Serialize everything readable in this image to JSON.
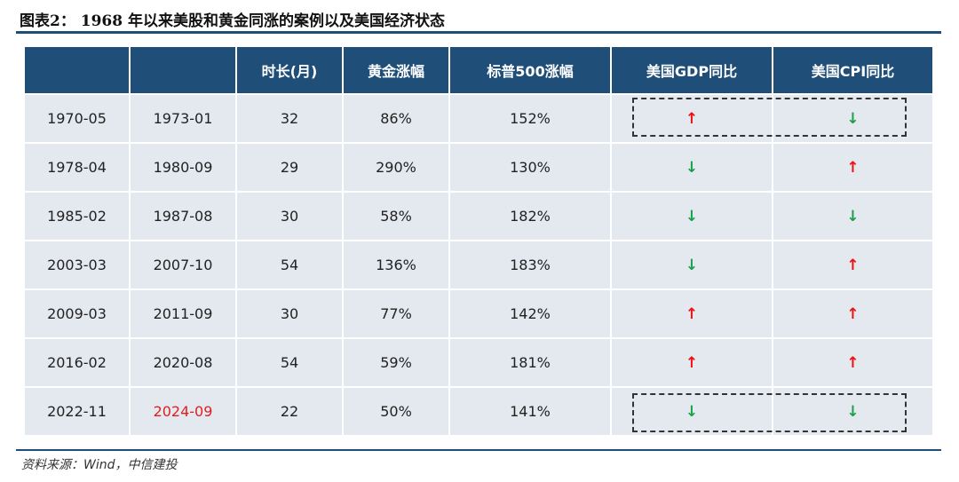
{
  "title": "图表2：  1968 年以来美股和黄金同涨的案例以及美国经济状态",
  "table": {
    "headers": [
      "",
      "",
      "时长(月)",
      "黄金涨幅",
      "标普500涨幅",
      "美国GDP同比",
      "美国CPI同比"
    ],
    "rows": [
      {
        "start": "1970-05",
        "end": "1973-01",
        "months": "32",
        "gold": "86%",
        "sp500": "152%",
        "gdp": "up",
        "cpi": "down"
      },
      {
        "start": "1978-04",
        "end": "1980-09",
        "months": "29",
        "gold": "290%",
        "sp500": "130%",
        "gdp": "down",
        "cpi": "up"
      },
      {
        "start": "1985-02",
        "end": "1987-08",
        "months": "30",
        "gold": "58%",
        "sp500": "182%",
        "gdp": "down",
        "cpi": "down"
      },
      {
        "start": "2003-03",
        "end": "2007-10",
        "months": "54",
        "gold": "136%",
        "sp500": "183%",
        "gdp": "down",
        "cpi": "up"
      },
      {
        "start": "2009-03",
        "end": "2011-09",
        "months": "30",
        "gold": "77%",
        "sp500": "142%",
        "gdp": "up",
        "cpi": "up"
      },
      {
        "start": "2016-02",
        "end": "2020-08",
        "months": "54",
        "gold": "59%",
        "sp500": "181%",
        "gdp": "up",
        "cpi": "up"
      },
      {
        "start": "2022-11",
        "end": "2024-09",
        "months": "22",
        "gold": "50%",
        "sp500": "141%",
        "gdp": "down",
        "cpi": "down"
      }
    ]
  },
  "colors": {
    "header_bg": "#1f4e79",
    "row_bg": "#e4e8ef",
    "up_arrow": "#ee1111",
    "down_arrow": "#1aa04a",
    "highlight_text": "#e02020"
  },
  "source": "资料来源：Wind，中信建投"
}
